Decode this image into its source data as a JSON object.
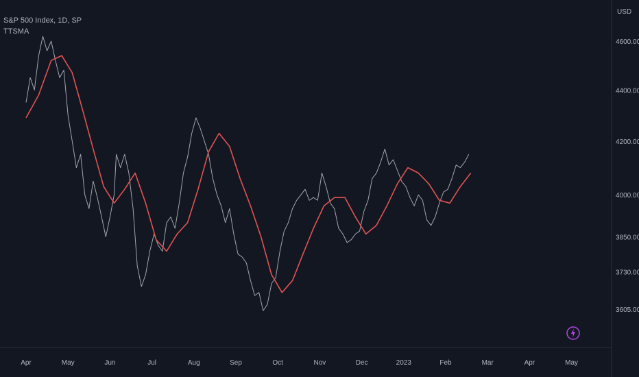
{
  "header": {
    "symbol_title": "S&P 500 Index, 1D, SP",
    "indicator_name": "TTSMA"
  },
  "axis": {
    "currency": "USD"
  },
  "colors": {
    "background": "#131722",
    "price_line": "#a3a6af",
    "ma_line": "#e25353",
    "accent": "#b146e6",
    "axis_text": "#b2b5be"
  },
  "icons": {
    "flash": "lightning-icon"
  },
  "chart_data": {
    "type": "line",
    "x_categories": [
      "Apr",
      "May",
      "Jun",
      "Jul",
      "Aug",
      "Sep",
      "Oct",
      "Nov",
      "Dec",
      "2023",
      "Feb",
      "Mar",
      "Apr",
      "May"
    ],
    "y_ticks": [
      "4600.00",
      "4400.00",
      "4200.00",
      "4000.00",
      "3850.00",
      "3730.00",
      "3605.00"
    ],
    "y_scale": "log",
    "grid": false,
    "series": [
      {
        "values": [
          [
            0.0,
            4350
          ],
          [
            0.1,
            4450
          ],
          [
            0.2,
            4400
          ],
          [
            0.3,
            4540
          ],
          [
            0.4,
            4620
          ],
          [
            0.5,
            4560
          ],
          [
            0.6,
            4600
          ],
          [
            0.7,
            4520
          ],
          [
            0.8,
            4450
          ],
          [
            0.9,
            4480
          ],
          [
            1.0,
            4300
          ],
          [
            1.1,
            4200
          ],
          [
            1.2,
            4100
          ],
          [
            1.3,
            4150
          ],
          [
            1.4,
            4000
          ],
          [
            1.5,
            3950
          ],
          [
            1.6,
            4050
          ],
          [
            1.7,
            3990
          ],
          [
            1.8,
            3920
          ],
          [
            1.9,
            3850
          ],
          [
            2.0,
            3920
          ],
          [
            2.1,
            4000
          ],
          [
            2.15,
            4150
          ],
          [
            2.25,
            4100
          ],
          [
            2.35,
            4150
          ],
          [
            2.45,
            4080
          ],
          [
            2.55,
            3950
          ],
          [
            2.65,
            3750
          ],
          [
            2.75,
            3680
          ],
          [
            2.85,
            3720
          ],
          [
            2.95,
            3800
          ],
          [
            3.05,
            3860
          ],
          [
            3.15,
            3820
          ],
          [
            3.25,
            3800
          ],
          [
            3.35,
            3900
          ],
          [
            3.45,
            3920
          ],
          [
            3.55,
            3880
          ],
          [
            3.65,
            3970
          ],
          [
            3.75,
            4080
          ],
          [
            3.85,
            4140
          ],
          [
            3.95,
            4230
          ],
          [
            4.05,
            4290
          ],
          [
            4.15,
            4250
          ],
          [
            4.25,
            4200
          ],
          [
            4.35,
            4150
          ],
          [
            4.45,
            4060
          ],
          [
            4.55,
            4000
          ],
          [
            4.65,
            3960
          ],
          [
            4.75,
            3900
          ],
          [
            4.85,
            3950
          ],
          [
            4.95,
            3860
          ],
          [
            5.05,
            3790
          ],
          [
            5.15,
            3780
          ],
          [
            5.25,
            3760
          ],
          [
            5.35,
            3700
          ],
          [
            5.45,
            3650
          ],
          [
            5.55,
            3660
          ],
          [
            5.65,
            3600
          ],
          [
            5.75,
            3620
          ],
          [
            5.85,
            3690
          ],
          [
            5.95,
            3710
          ],
          [
            6.05,
            3800
          ],
          [
            6.15,
            3870
          ],
          [
            6.25,
            3900
          ],
          [
            6.35,
            3950
          ],
          [
            6.45,
            3980
          ],
          [
            6.55,
            4000
          ],
          [
            6.65,
            4020
          ],
          [
            6.75,
            3980
          ],
          [
            6.85,
            3990
          ],
          [
            6.95,
            3980
          ],
          [
            7.05,
            4080
          ],
          [
            7.15,
            4030
          ],
          [
            7.25,
            3970
          ],
          [
            7.35,
            3950
          ],
          [
            7.45,
            3880
          ],
          [
            7.55,
            3860
          ],
          [
            7.65,
            3830
          ],
          [
            7.75,
            3840
          ],
          [
            7.85,
            3860
          ],
          [
            7.95,
            3870
          ],
          [
            8.05,
            3940
          ],
          [
            8.15,
            3980
          ],
          [
            8.25,
            4060
          ],
          [
            8.35,
            4080
          ],
          [
            8.45,
            4120
          ],
          [
            8.55,
            4170
          ],
          [
            8.65,
            4110
          ],
          [
            8.75,
            4130
          ],
          [
            8.85,
            4090
          ],
          [
            8.95,
            4050
          ],
          [
            9.05,
            4030
          ],
          [
            9.15,
            3990
          ],
          [
            9.25,
            3960
          ],
          [
            9.35,
            4000
          ],
          [
            9.45,
            3980
          ],
          [
            9.55,
            3910
          ],
          [
            9.65,
            3890
          ],
          [
            9.75,
            3920
          ],
          [
            9.85,
            3970
          ],
          [
            9.95,
            4010
          ],
          [
            10.05,
            4020
          ],
          [
            10.15,
            4060
          ],
          [
            10.25,
            4110
          ],
          [
            10.35,
            4100
          ],
          [
            10.45,
            4120
          ],
          [
            10.55,
            4150
          ]
        ]
      },
      {
        "values": [
          [
            0.0,
            4290
          ],
          [
            0.3,
            4380
          ],
          [
            0.6,
            4520
          ],
          [
            0.85,
            4540
          ],
          [
            1.1,
            4470
          ],
          [
            1.35,
            4320
          ],
          [
            1.6,
            4170
          ],
          [
            1.85,
            4030
          ],
          [
            2.1,
            3970
          ],
          [
            2.35,
            4020
          ],
          [
            2.6,
            4080
          ],
          [
            2.85,
            3970
          ],
          [
            3.1,
            3840
          ],
          [
            3.35,
            3800
          ],
          [
            3.6,
            3860
          ],
          [
            3.85,
            3900
          ],
          [
            4.1,
            4020
          ],
          [
            4.35,
            4160
          ],
          [
            4.6,
            4230
          ],
          [
            4.85,
            4180
          ],
          [
            5.1,
            4060
          ],
          [
            5.35,
            3960
          ],
          [
            5.6,
            3850
          ],
          [
            5.85,
            3720
          ],
          [
            6.1,
            3660
          ],
          [
            6.35,
            3700
          ],
          [
            6.6,
            3790
          ],
          [
            6.85,
            3880
          ],
          [
            7.1,
            3960
          ],
          [
            7.35,
            3990
          ],
          [
            7.6,
            3990
          ],
          [
            7.85,
            3920
          ],
          [
            8.1,
            3860
          ],
          [
            8.35,
            3890
          ],
          [
            8.6,
            3960
          ],
          [
            8.85,
            4040
          ],
          [
            9.1,
            4100
          ],
          [
            9.35,
            4080
          ],
          [
            9.6,
            4040
          ],
          [
            9.85,
            3980
          ],
          [
            10.1,
            3970
          ],
          [
            10.35,
            4030
          ],
          [
            10.6,
            4080
          ]
        ]
      }
    ]
  }
}
